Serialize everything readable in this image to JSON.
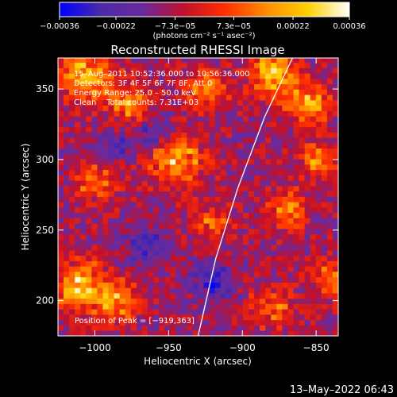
{
  "chart_data": {
    "type": "heatmap",
    "title": "Reconstructed RHESSI Image",
    "xlabel": "Heliocentric X (arcsec)",
    "ylabel": "Heliocentric Y (arcsec)",
    "xlim": [
      -1025,
      -835
    ],
    "ylim": [
      175,
      372
    ],
    "xticks": [
      -1000,
      -950,
      -900,
      -850
    ],
    "yticks": [
      200,
      250,
      300,
      350
    ],
    "xtick_labels": [
      "−1000",
      "−950",
      "−900",
      "−850"
    ],
    "ytick_labels": [
      "200",
      "250",
      "300",
      "350"
    ],
    "colorbar": {
      "range": [
        -0.00036,
        0.00036
      ],
      "tick_values": [
        -0.00036,
        -0.00022,
        -7.3e-05,
        7.3e-05,
        0.00022,
        0.00036
      ],
      "tick_labels": [
        "−0.00036",
        "−0.00022",
        "−7.3e−05",
        "7.3e−05",
        "0.00022",
        "0.00036"
      ],
      "unit_label": "(photons cm⁻² s⁻¹ asec⁻²)",
      "colors": [
        "#0000ff",
        "#4b2aa8",
        "#6a2a9e",
        "#c0102c",
        "#ff3000",
        "#ff8c00",
        "#ffd000",
        "#ffffff"
      ]
    },
    "annotations": [
      "15–Aug–2011 10:52:36.000 to 10:56:36.000",
      "Detectors: 3F 4F 5F 6F 7F 8F, Att 0",
      "Energy Range: 25.0 – 50.0 keV",
      "Clean    Total counts: 7.31E+03"
    ],
    "peak_label": "Position of Peak = [−919,363]",
    "peak_position": [
      -919,
      363
    ],
    "limb_curve": [
      [
        -930,
        175
      ],
      [
        -918,
        230
      ],
      [
        -903,
        280
      ],
      [
        -885,
        330
      ],
      [
        -866,
        372
      ]
    ],
    "bright_regions": [
      {
        "x": -1005,
        "y": 360,
        "r": 18,
        "level": 0.0003
      },
      {
        "x": -975,
        "y": 340,
        "r": 14,
        "level": 0.00025
      },
      {
        "x": -945,
        "y": 300,
        "r": 18,
        "level": 0.0003
      },
      {
        "x": -925,
        "y": 350,
        "r": 14,
        "level": 0.00022
      },
      {
        "x": -880,
        "y": 360,
        "r": 16,
        "level": 0.0003
      },
      {
        "x": -855,
        "y": 340,
        "r": 14,
        "level": 0.00028
      },
      {
        "x": -850,
        "y": 300,
        "r": 12,
        "level": 0.00022
      },
      {
        "x": -1000,
        "y": 285,
        "r": 14,
        "level": 0.0002
      },
      {
        "x": -920,
        "y": 255,
        "r": 12,
        "level": 0.00018
      },
      {
        "x": -870,
        "y": 265,
        "r": 14,
        "level": 0.00022
      },
      {
        "x": -1010,
        "y": 210,
        "r": 18,
        "level": 0.0003
      },
      {
        "x": -985,
        "y": 200,
        "r": 14,
        "level": 0.00025
      },
      {
        "x": -840,
        "y": 215,
        "r": 12,
        "level": 0.00022
      },
      {
        "x": -880,
        "y": 195,
        "r": 14,
        "level": 0.0002
      }
    ],
    "dim_regions": [
      {
        "x": -960,
        "y": 320,
        "r": 12,
        "level": -0.0002
      },
      {
        "x": -920,
        "y": 215,
        "r": 14,
        "level": -0.0002
      },
      {
        "x": -965,
        "y": 240,
        "r": 14,
        "level": -0.00015
      },
      {
        "x": -985,
        "y": 310,
        "r": 10,
        "level": -0.00015
      }
    ],
    "grid": false
  },
  "footer": {
    "date": "13–May–2022 06:43"
  }
}
